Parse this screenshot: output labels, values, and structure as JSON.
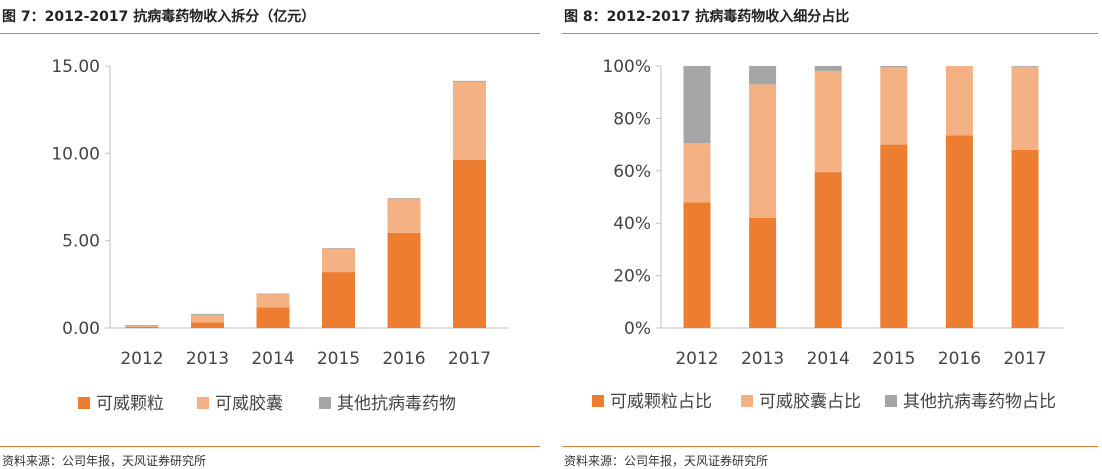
{
  "colors": {
    "s1": "#ed7d31",
    "s2": "#f4b183",
    "s3": "#a5a5a5",
    "rule": "#e07b39",
    "axis": "#bfbfbf"
  },
  "chart_data": [
    {
      "type": "bar",
      "stacked": true,
      "title": "图 7：2012-2017 抗病毒药物收入拆分（亿元）",
      "source": "资料来源：公司年报，天风证券研究所",
      "categories": [
        "2012",
        "2013",
        "2014",
        "2015",
        "2016",
        "2017"
      ],
      "series": [
        {
          "name": "可威颗粒",
          "color": "#ed7d31",
          "values": [
            0.07,
            0.33,
            1.18,
            3.2,
            5.45,
            9.62
          ]
        },
        {
          "name": "可威胶囊",
          "color": "#f4b183",
          "values": [
            0.05,
            0.42,
            0.77,
            1.36,
            1.97,
            4.47
          ]
        },
        {
          "name": "其他抗病毒药物",
          "color": "#a5a5a5",
          "values": [
            0.05,
            0.06,
            0.02,
            0.01,
            0.01,
            0.06
          ]
        }
      ],
      "yticks": [
        "0.00",
        "5.00",
        "10.00",
        "15.00"
      ],
      "ylim": [
        0,
        15
      ],
      "legend": "bottom"
    },
    {
      "type": "bar",
      "stacked": true,
      "title": "图 8：2012-2017 抗病毒药物收入细分占比",
      "source": "资料来源：公司年报，天风证券研究所",
      "categories": [
        "2012",
        "2013",
        "2014",
        "2015",
        "2016",
        "2017"
      ],
      "series": [
        {
          "name": "可威颗粒占比",
          "color": "#ed7d31",
          "values": [
            48,
            42,
            59.5,
            70,
            73.5,
            68
          ]
        },
        {
          "name": "可威胶囊占比",
          "color": "#f4b183",
          "values": [
            22.5,
            51,
            38.5,
            29.5,
            26.5,
            31.7
          ]
        },
        {
          "name": "其他抗病毒药物占比",
          "color": "#a5a5a5",
          "values": [
            29.5,
            7,
            2,
            0.5,
            0,
            0.3
          ]
        }
      ],
      "yticks": [
        "0%",
        "20%",
        "40%",
        "60%",
        "80%",
        "100%"
      ],
      "ylim": [
        0,
        100
      ],
      "legend": "bottom"
    }
  ]
}
